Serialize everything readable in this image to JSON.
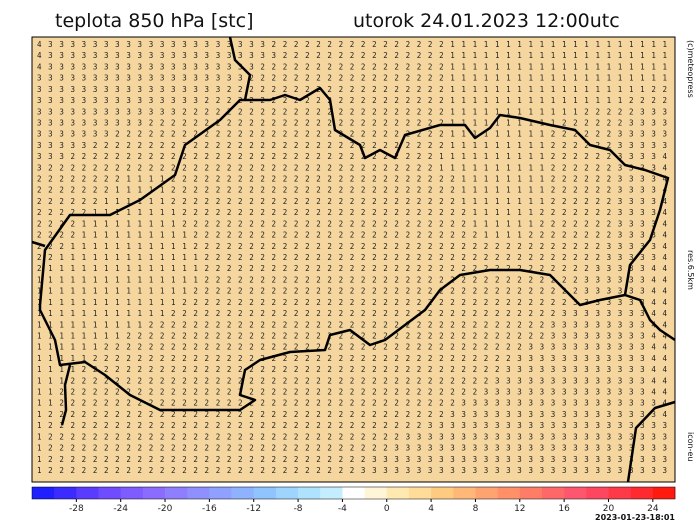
{
  "header": {
    "title": "teplota 850 hPa [stc]",
    "valid_time": "utorok 24.01.2023 12:00utc"
  },
  "side_labels": [
    "(c)meteopress",
    "res.6.5km",
    "icon-eu"
  ],
  "map": {
    "grid_rows": [
      "433333333333333333333222222222222222211111111111111111111",
      "433333333333333333333322222222222222211111111111111111111",
      "433333333333333333332222222222222222211111111111111111111",
      "333333333333333333322222222222222222211111111111111111111",
      "333333333333333332222222222222222222211111111111111111122",
      "333333333333333222222222222222222222211111111111111112222",
      "333333333333322222222222222222222222211111111111122222333",
      "333333333322222222222222222222222222211111111112222223333",
      "333333322222222222222222222222222222211111111122222233333",
      "333332222222222222222222222222222222211111111122222233333",
      "333222222222222222222222222222222222111111111122222233334",
      "322222222222222222222222222222222222111111111122222233334",
      "222222221111222222222222222222222222221111111122222233334",
      "222222211111222222222222222222222222221111111122222233334",
      "222222111111222222222222222222222222221111111122222233334",
      "222221111111122222222222222222222222222111111222222233334",
      "222211111111122222222222222222222222222111111222222233334",
      "222211111111112222222222222222222222222211112222222233334",
      "222111111111112222222222222222222222222222222222222333334",
      "221111111111111222222222222222222222222222222222222333334",
      "211111111111111222222222222222222222222222222222223333344",
      "111111111111111222222222222222222222222222222222233333344",
      "111111111111112222222222222222222222222222222222233333344",
      "111111111111122222222222222222222222222222222222333333344",
      "111111111111222222222222222222222222222222222223333333344",
      "111111111122222222222222222222222222222222222233333333344",
      "111111112222222222222222222222222222222222222233333333344",
      "111111222222222222222222222222222222222222223333333333344",
      "111112222222222222222222222222222222222222233333333333344",
      "111122222222222222222222222222222222222222333333333333344",
      "111222222222222222222222222222222222222223333333333333344",
      "112222222222222222222222222222222222222233333333333333344",
      "112222222222222222222222222222222222223333333333333333334",
      "122222222222222222222222222222222222233333333333333333334",
      "122222222222222222222222222222222223333333333333333333333",
      "122222222222222222222222222222222333333333333333333333333",
      "122222222222222222222222222222223333333333333333333333333",
      "122222222222222222222222222222333333333333333333333333333",
      "122222222222222222222222222223333333333333333333333333333"
    ]
  },
  "colorbar": {
    "lim": [
      -32,
      26
    ],
    "ticks": [
      -28,
      -24,
      -20,
      -16,
      -12,
      -8,
      -4,
      0,
      4,
      8,
      12,
      16,
      20,
      24
    ],
    "colors": [
      "#1f1fff",
      "#3b2bff",
      "#5a3cff",
      "#6f4cff",
      "#7f5cff",
      "#8a6dff",
      "#8f7fff",
      "#8f8fff",
      "#8fa0ff",
      "#8fb2ff",
      "#8fc4ff",
      "#9fd4ff",
      "#afe2ff",
      "#c4eeff",
      "#ffffff",
      "#fff6d8",
      "#ffe9b0",
      "#ffdc98",
      "#ffcb80",
      "#ffb878",
      "#ffa470",
      "#ff9068",
      "#ff7c66",
      "#ff6868",
      "#ff5670",
      "#ff4660",
      "#ff3a48",
      "#ff2a30",
      "#ff1a10"
    ]
  },
  "footer": "2023-01-23-18:01"
}
